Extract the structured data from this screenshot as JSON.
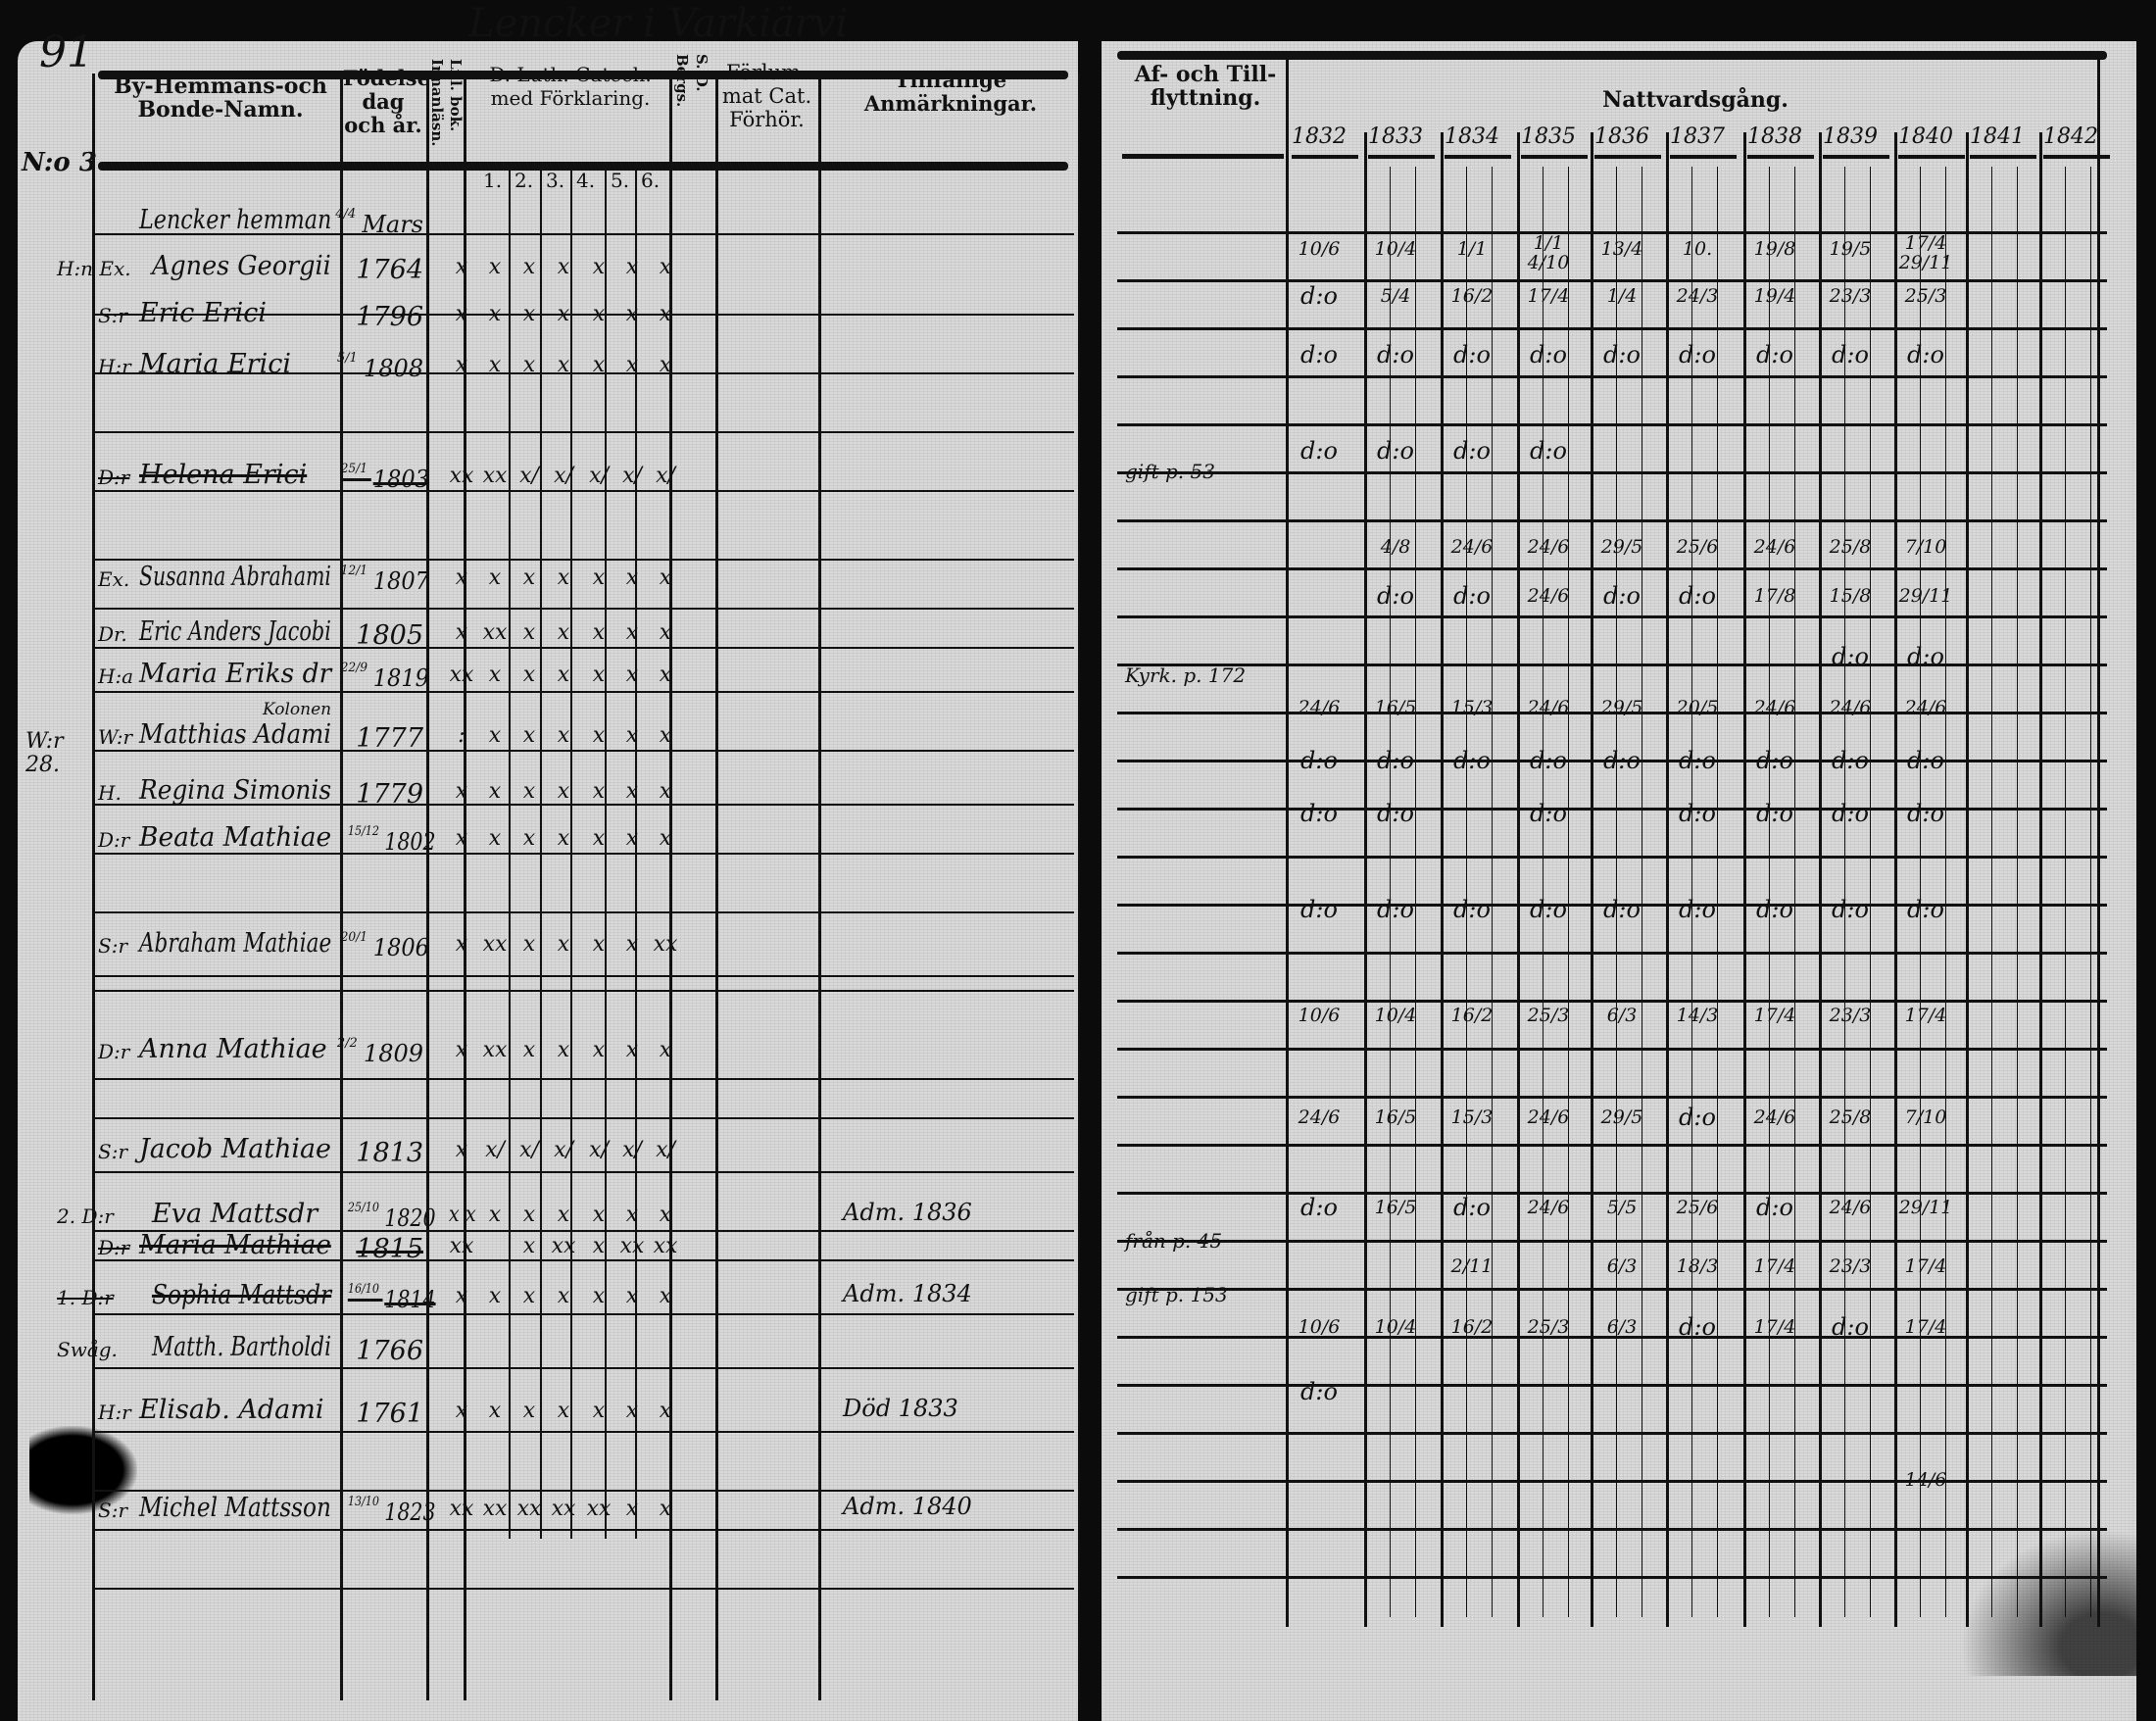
{
  "page_number": "91",
  "village_title": "Lencker i Varkiärvi",
  "margin_notes": {
    "household": "N:o 3",
    "side_note": "W:r 28."
  },
  "left_headers": {
    "name": "By-Hemmans-och Bonde-Namn.",
    "birth": "Födelse-dag och år.",
    "reading": "Innanläsn.",
    "small_book": "Lill. bok.",
    "catechism": "D. Luth. Catech. med Förklaring.",
    "catechism_parts": [
      "1.",
      "2.",
      "3.",
      "4.",
      "5.",
      "6."
    ],
    "bergs": "Bergs.",
    "sd": "S. D.",
    "neglected": "Förlum-mat Cat. Förhör.",
    "remarks": "Tillfällige Anmärkningar."
  },
  "right_headers": {
    "moves": "Af- och Till-flyttning.",
    "communion": "Nattvardsgång.",
    "years": [
      "1832",
      "1833",
      "1834",
      "1835",
      "1836",
      "1837",
      "1838",
      "1839",
      "1840",
      "1841",
      "1842"
    ]
  },
  "entries": [
    {
      "prefix": "",
      "name": "Lencker hemman",
      "birth": "4/4 Mars",
      "marks": [
        "",
        "",
        "",
        "",
        "",
        "",
        ""
      ],
      "remark": "",
      "struck": false
    },
    {
      "prefix": "H:n Ex.",
      "name": "Agnes Georgii",
      "birth": "1764",
      "marks": [
        "x",
        "x",
        "x",
        "x",
        "x",
        "x",
        "x"
      ],
      "remark": "",
      "struck": false
    },
    {
      "prefix": "S:r",
      "name": "Eric Erici",
      "birth": "1796",
      "marks": [
        "x",
        "x",
        "x",
        "x",
        "x",
        "x",
        "x"
      ],
      "remark": "",
      "struck": false
    },
    {
      "prefix": "H:r",
      "name": "Maria Erici",
      "birth": "5/1 1808",
      "marks": [
        "x",
        "x",
        "x",
        "x",
        "x",
        "x",
        "x"
      ],
      "remark": "",
      "struck": false
    },
    {
      "prefix": "D:r",
      "name": "Helena Erici",
      "birth": "25/1 1803",
      "marks": [
        "xx",
        "xx",
        "x/",
        "x/",
        "x/",
        "x/",
        "x/"
      ],
      "remark": "",
      "struck": true
    },
    {
      "prefix": "Ex.",
      "name": "Susanna Abrahami",
      "birth": "12/1 1807",
      "marks": [
        "x",
        "x",
        "x",
        "x",
        "x",
        "x",
        "x"
      ],
      "remark": "",
      "struck": false
    },
    {
      "prefix": "Dr.",
      "name": "Eric Anders Jacobi",
      "birth": "1805",
      "marks": [
        "x",
        "xx",
        "x",
        "x",
        "x",
        "x",
        "x"
      ],
      "remark": "",
      "struck": false
    },
    {
      "prefix": "H:a",
      "name": "Maria Eriks dr",
      "birth": "22/9 1819",
      "marks": [
        "xx",
        "x",
        "x",
        "x",
        "x",
        "x",
        "x"
      ],
      "remark": "",
      "struck": false
    },
    {
      "prefix": "W:r",
      "name": "Matthias Adami",
      "note": "Kolonen",
      "birth": "1777",
      "marks": [
        ":",
        "x",
        "x",
        "x",
        "x",
        "x",
        "x"
      ],
      "remark": "",
      "struck": false
    },
    {
      "prefix": "H.",
      "name": "Regina Simonis",
      "birth": "1779",
      "marks": [
        "x",
        "x",
        "x",
        "x",
        "x",
        "x",
        "x"
      ],
      "remark": "",
      "struck": false
    },
    {
      "prefix": "D:r",
      "name": "Beata Mathiae",
      "birth": "15/12 1802",
      "marks": [
        "x",
        "x",
        "x",
        "x",
        "x",
        "x",
        "x"
      ],
      "remark": "",
      "struck": false
    },
    {
      "prefix": "S:r",
      "name": "Abraham Mathiae",
      "birth": "20/1 1806",
      "marks": [
        "x",
        "xx",
        "x",
        "x",
        "x",
        "x",
        "xx"
      ],
      "remark": "",
      "struck": false
    },
    {
      "prefix": "D:r",
      "name": "Anna Mathiae",
      "birth": "2/2 1809",
      "marks": [
        "x",
        "xx",
        "x",
        "x",
        "x",
        "x",
        "x"
      ],
      "remark": "",
      "struck": false
    },
    {
      "prefix": "S:r",
      "name": "Jacob Mathiae",
      "birth": "1813",
      "marks": [
        "x",
        "x/",
        "x/",
        "x/",
        "x/",
        "x/",
        "x/"
      ],
      "remark": "",
      "struck": false
    },
    {
      "prefix": "2. D:r",
      "name": "Eva Mattsdr",
      "birth": "25/10 1820",
      "marks": [
        "x x",
        "x",
        "x",
        "x",
        "x",
        "x",
        "x"
      ],
      "remark": "Adm. 1836",
      "struck": false
    },
    {
      "prefix": "D:r",
      "name": "Maria Mathiae",
      "birth": "1815",
      "marks": [
        "xx",
        "",
        "x",
        "xx",
        "x",
        "xx",
        "xx"
      ],
      "remark": "",
      "struck": true
    },
    {
      "prefix": "1. D:r",
      "name": "Sophia Mattsdr",
      "birth": "16/10 1814",
      "marks": [
        "x",
        "x",
        "x",
        "x",
        "x",
        "x",
        "x"
      ],
      "remark": "Adm. 1834",
      "struck": true
    },
    {
      "prefix": "Swåg.",
      "name": "Matth. Bartholdi",
      "birth": "1766",
      "marks": [
        "",
        "",
        "",
        "",
        "",
        "",
        ""
      ],
      "remark": "",
      "struck": false
    },
    {
      "prefix": "H:r",
      "name": "Elisab. Adami",
      "birth": "1761",
      "marks": [
        "x",
        "x",
        "x",
        "x",
        "x",
        "x",
        "x"
      ],
      "remark": "Död 1833",
      "struck": false
    },
    {
      "prefix": "S:r",
      "name": "Michel Mattsson",
      "birth": "13/10 1823",
      "marks": [
        "xx",
        "xx",
        "xx",
        "xx",
        "xx",
        "x",
        "x"
      ],
      "remark": "Adm. 1840",
      "struck": false
    }
  ],
  "moves": [
    "gift p. 53",
    "Kyrk. p. 172",
    "från p. 45",
    "gift p. 153"
  ],
  "communion_rows": [
    [
      "10/6",
      "10/4",
      "1/1",
      "1/1 4/10",
      "13/4",
      "10.",
      "19/8",
      "19/5",
      "17/4 29/11",
      "",
      ""
    ],
    [
      "d:o",
      "5/4",
      "16/2",
      "17/4",
      "1/4",
      "24/3",
      "19/4",
      "23/3",
      "25/3",
      "",
      ""
    ],
    [
      "d:o",
      "d:o",
      "d:o",
      "d:o",
      "d:o",
      "d:o",
      "d:o",
      "d:o",
      "d:o",
      "",
      ""
    ],
    [
      "d:o",
      "d:o",
      "d:o",
      "d:o",
      "",
      "",
      "",
      "",
      "",
      "",
      ""
    ],
    [
      "",
      "4/8",
      "24/6",
      "24/6",
      "29/5",
      "25/6",
      "24/6",
      "25/8",
      "7/10",
      "",
      ""
    ],
    [
      "",
      "d:o",
      "d:o",
      "24/6",
      "d:o",
      "d:o",
      "17/8",
      "15/8",
      "29/11",
      "",
      ""
    ],
    [
      "",
      "",
      "",
      "",
      "",
      "",
      "",
      "d:o",
      "d:o",
      "",
      ""
    ],
    [
      "24/6",
      "16/5",
      "15/3",
      "24/6",
      "29/5",
      "20/5",
      "24/6",
      "24/6",
      "24/6",
      "",
      ""
    ],
    [
      "d:o",
      "d:o",
      "d:o",
      "d:o",
      "d:o",
      "d:o",
      "d:o",
      "d:o",
      "d:o",
      "",
      ""
    ],
    [
      "d:o",
      "d:o",
      "",
      "d:o",
      "",
      "d:o",
      "d:o",
      "d:o",
      "d:o",
      "",
      ""
    ],
    [
      "d:o",
      "d:o",
      "d:o",
      "d:o",
      "d:o",
      "d:o",
      "d:o",
      "d:o",
      "d:o",
      "",
      ""
    ],
    [
      "10/6",
      "10/4",
      "16/2",
      "25/3",
      "6/3",
      "14/3",
      "17/4",
      "23/3",
      "17/4",
      "",
      ""
    ],
    [
      "24/6",
      "16/5",
      "15/3",
      "24/6",
      "29/5",
      "d:o",
      "24/6",
      "25/8",
      "7/10",
      "",
      ""
    ],
    [
      "d:o",
      "16/5",
      "d:o",
      "24/6",
      "5/5",
      "25/6",
      "d:o",
      "24/6",
      "29/11",
      "",
      ""
    ],
    [
      "",
      "",
      "2/11",
      "",
      "6/3",
      "18/3",
      "17/4",
      "23/3",
      "17/4",
      "",
      ""
    ],
    [
      "10/6",
      "10/4",
      "16/2",
      "25/3",
      "6/3",
      "d:o",
      "17/4",
      "d:o",
      "17/4",
      "",
      ""
    ],
    [
      "d:o",
      "",
      "",
      "",
      "",
      "",
      "",
      "",
      "",
      "",
      ""
    ],
    [
      "",
      "",
      "",
      "",
      "",
      "",
      "",
      "",
      "14/6",
      "",
      ""
    ]
  ]
}
